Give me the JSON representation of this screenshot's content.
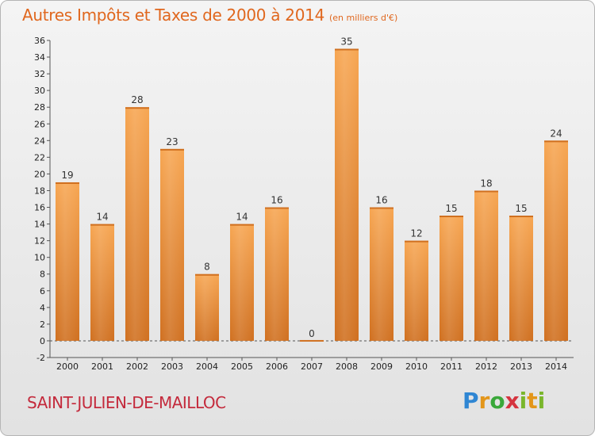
{
  "page": {
    "commune": "SAINT-JULIEN-DE-MAILLOC",
    "brand": "Proxiti"
  },
  "chart_data": {
    "type": "bar",
    "title": "Autres Impôts et Taxes de 2000 à 2014",
    "subtitle": "(en milliers d'€)",
    "xlabel": "",
    "ylabel": "",
    "categories": [
      "2000",
      "2001",
      "2002",
      "2003",
      "2004",
      "2005",
      "2006",
      "2007",
      "2008",
      "2009",
      "2010",
      "2011",
      "2012",
      "2013",
      "2014"
    ],
    "values": [
      19,
      14,
      28,
      23,
      8,
      14,
      16,
      0,
      35,
      16,
      12,
      15,
      18,
      15,
      24
    ],
    "value_labels": [
      "19",
      "14",
      "28",
      "23",
      "8",
      "14",
      "16",
      "0",
      "35",
      "16",
      "12",
      "15",
      "18",
      "15",
      "24"
    ],
    "ylim": [
      -2,
      36
    ],
    "yticks": [
      -2,
      0,
      2,
      4,
      6,
      8,
      10,
      12,
      14,
      16,
      18,
      20,
      22,
      24,
      26,
      28,
      30,
      32,
      34,
      36
    ],
    "grid": false,
    "legend": "none",
    "colors": {
      "bar_light": "#f7a652",
      "bar_dark": "#d07020",
      "title": "#e0671e",
      "commune": "#c42a3c"
    }
  }
}
